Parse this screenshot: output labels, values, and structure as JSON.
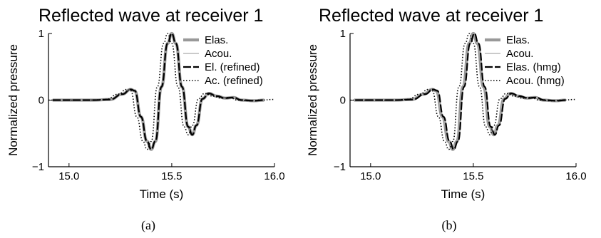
{
  "chart_data": [
    {
      "type": "line",
      "title": "Reflected wave at receiver 1",
      "xlabel": "Time (s)",
      "ylabel": "Normalized pressure",
      "xlim": [
        14.9,
        16.0
      ],
      "ylim": [
        -1,
        1
      ],
      "xticks": [
        "15.0",
        "15.5",
        "16.0"
      ],
      "yticks": [
        "1",
        "0",
        "−1"
      ],
      "grid": false,
      "legend_position": "top-right",
      "caption": "(a)",
      "series": [
        {
          "name": "Elas.",
          "style": "thick-gray",
          "color": "#999999",
          "shift": 0.02
        },
        {
          "name": "Acou.",
          "style": "thin-gray",
          "color": "#aaaaaa",
          "shift": 0.02
        },
        {
          "name": "El. (refined)",
          "style": "dashed-black",
          "color": "#000000",
          "shift": 0.02
        },
        {
          "name": "Ac. (refined)",
          "style": "dotted-black",
          "color": "#000000",
          "shift": 0.0
        }
      ],
      "waveform_points": [
        [
          14.9,
          0.0
        ],
        [
          15.1,
          0.0
        ],
        [
          15.18,
          0.01
        ],
        [
          15.24,
          0.09
        ],
        [
          15.28,
          0.16
        ],
        [
          15.3,
          0.14
        ],
        [
          15.33,
          -0.25
        ],
        [
          15.36,
          -0.62
        ],
        [
          15.38,
          -0.74
        ],
        [
          15.4,
          -0.62
        ],
        [
          15.43,
          0.2
        ],
        [
          15.46,
          0.85
        ],
        [
          15.48,
          1.0
        ],
        [
          15.5,
          0.85
        ],
        [
          15.53,
          0.2
        ],
        [
          15.56,
          -0.4
        ],
        [
          15.58,
          -0.52
        ],
        [
          15.6,
          -0.38
        ],
        [
          15.63,
          0.02
        ],
        [
          15.66,
          0.1
        ],
        [
          15.7,
          0.06
        ],
        [
          15.74,
          0.03
        ],
        [
          15.78,
          0.04
        ],
        [
          15.82,
          0.0
        ],
        [
          15.88,
          -0.01
        ],
        [
          15.93,
          0.0
        ],
        [
          16.0,
          0.01
        ]
      ]
    },
    {
      "type": "line",
      "title": "Reflected wave at receiver 1",
      "xlabel": "Time (s)",
      "ylabel": "Normalized pressure",
      "xlim": [
        14.9,
        16.0
      ],
      "ylim": [
        -1,
        1
      ],
      "xticks": [
        "15.0",
        "15.5",
        "16.0"
      ],
      "yticks": [
        "1",
        "0",
        "−1"
      ],
      "grid": false,
      "legend_position": "top-right",
      "caption": "(b)",
      "series": [
        {
          "name": "Elas.",
          "style": "thick-gray",
          "color": "#999999",
          "shift": 0.02
        },
        {
          "name": "Acou.",
          "style": "thin-gray",
          "color": "#aaaaaa",
          "shift": 0.02
        },
        {
          "name": "Elas. (hmg)",
          "style": "dashed-black",
          "color": "#000000",
          "shift": 0.025
        },
        {
          "name": "Acou. (hmg)",
          "style": "dotted-black",
          "color": "#000000",
          "shift": 0.0
        }
      ],
      "waveform_points": [
        [
          14.9,
          0.0
        ],
        [
          15.1,
          0.0
        ],
        [
          15.18,
          0.01
        ],
        [
          15.24,
          0.09
        ],
        [
          15.28,
          0.16
        ],
        [
          15.3,
          0.14
        ],
        [
          15.33,
          -0.25
        ],
        [
          15.36,
          -0.62
        ],
        [
          15.38,
          -0.74
        ],
        [
          15.4,
          -0.62
        ],
        [
          15.43,
          0.2
        ],
        [
          15.46,
          0.85
        ],
        [
          15.48,
          1.0
        ],
        [
          15.5,
          0.85
        ],
        [
          15.53,
          0.2
        ],
        [
          15.56,
          -0.4
        ],
        [
          15.58,
          -0.52
        ],
        [
          15.6,
          -0.38
        ],
        [
          15.63,
          0.02
        ],
        [
          15.66,
          0.1
        ],
        [
          15.7,
          0.06
        ],
        [
          15.74,
          0.03
        ],
        [
          15.78,
          0.04
        ],
        [
          15.82,
          0.0
        ],
        [
          15.88,
          -0.01
        ],
        [
          15.93,
          0.0
        ],
        [
          16.0,
          0.01
        ]
      ]
    }
  ]
}
